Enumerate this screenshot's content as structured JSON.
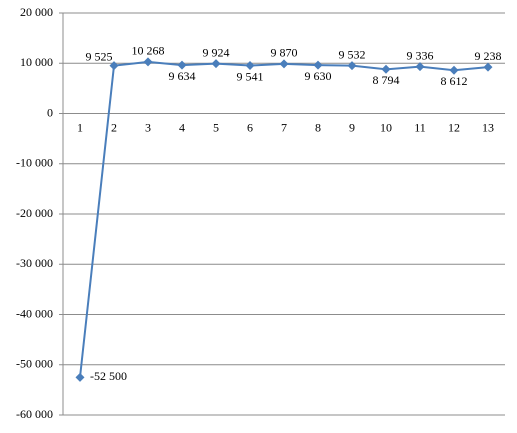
{
  "chart_data": {
    "type": "line",
    "categories": [
      "1",
      "2",
      "3",
      "4",
      "5",
      "6",
      "7",
      "8",
      "9",
      "10",
      "11",
      "12",
      "13"
    ],
    "values": [
      -52500,
      9525,
      10268,
      9634,
      9924,
      9541,
      9870,
      9630,
      9532,
      8794,
      9336,
      8612,
      9238
    ],
    "value_labels": [
      "-52 500",
      "9 525",
      "10 268",
      "9 634",
      "9 924",
      "9 541",
      "9 870",
      "9 630",
      "9 532",
      "8 794",
      "9 336",
      "8 612",
      "9 238"
    ],
    "color": "#4a7ebb",
    "ylim": [
      -60000,
      20000
    ],
    "yticks": [
      {
        "value": -60000,
        "label": "-60 000"
      },
      {
        "value": -50000,
        "label": "-50 000"
      },
      {
        "value": -40000,
        "label": "-40 000"
      },
      {
        "value": -30000,
        "label": "-30 000"
      },
      {
        "value": -20000,
        "label": "-20 000"
      },
      {
        "value": -10000,
        "label": "-10 000"
      },
      0,
      {
        "value": 10000,
        "label": "10 000"
      },
      {
        "value": 20000,
        "label": "20 000"
      }
    ],
    "grid": true
  }
}
